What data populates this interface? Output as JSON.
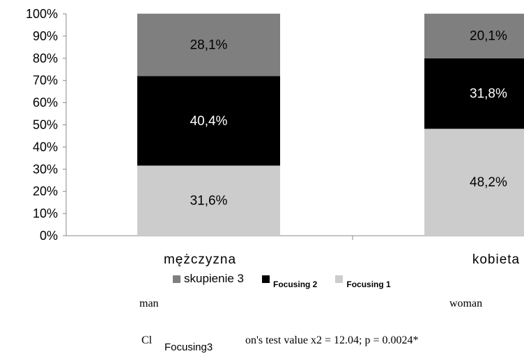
{
  "chart_data": {
    "type": "bar",
    "stacked": true,
    "categories": [
      "mężczyzna",
      "kobieta"
    ],
    "series": [
      {
        "name": "Focusing 1",
        "color": "#cccccc",
        "label_color": "#000000",
        "values": [
          31.6,
          48.2
        ],
        "labels": [
          "31,6%",
          "48,2%"
        ]
      },
      {
        "name": "Focusing 2",
        "color": "#000000",
        "label_color": "#ffffff",
        "values": [
          40.4,
          31.8
        ],
        "labels": [
          "40,4%",
          "31,8%"
        ]
      },
      {
        "name": "skupienie 3",
        "color": "#7f7f7f",
        "label_color": "#000000",
        "values": [
          28.1,
          20.1
        ],
        "labels": [
          "28,1%",
          "20,1%"
        ]
      }
    ],
    "yticks": [
      "0%",
      "10%",
      "20%",
      "30%",
      "40%",
      "50%",
      "60%",
      "70%",
      "80%",
      "90%",
      "100%"
    ],
    "ylim": [
      0,
      100
    ],
    "grid": false
  },
  "legend": [
    {
      "label": "skupienie 3",
      "color": "#7f7f7f"
    },
    {
      "label": "Focusing 2",
      "color": "#000000"
    },
    {
      "label": "Focusing 1",
      "color": "#cccccc"
    }
  ],
  "annotations": {
    "man": "man",
    "woman": "woman",
    "prefix": "Cl",
    "focusing3": "Focusing3",
    "test": "on's test value x2 = 12.04; p = 0.0024*"
  }
}
